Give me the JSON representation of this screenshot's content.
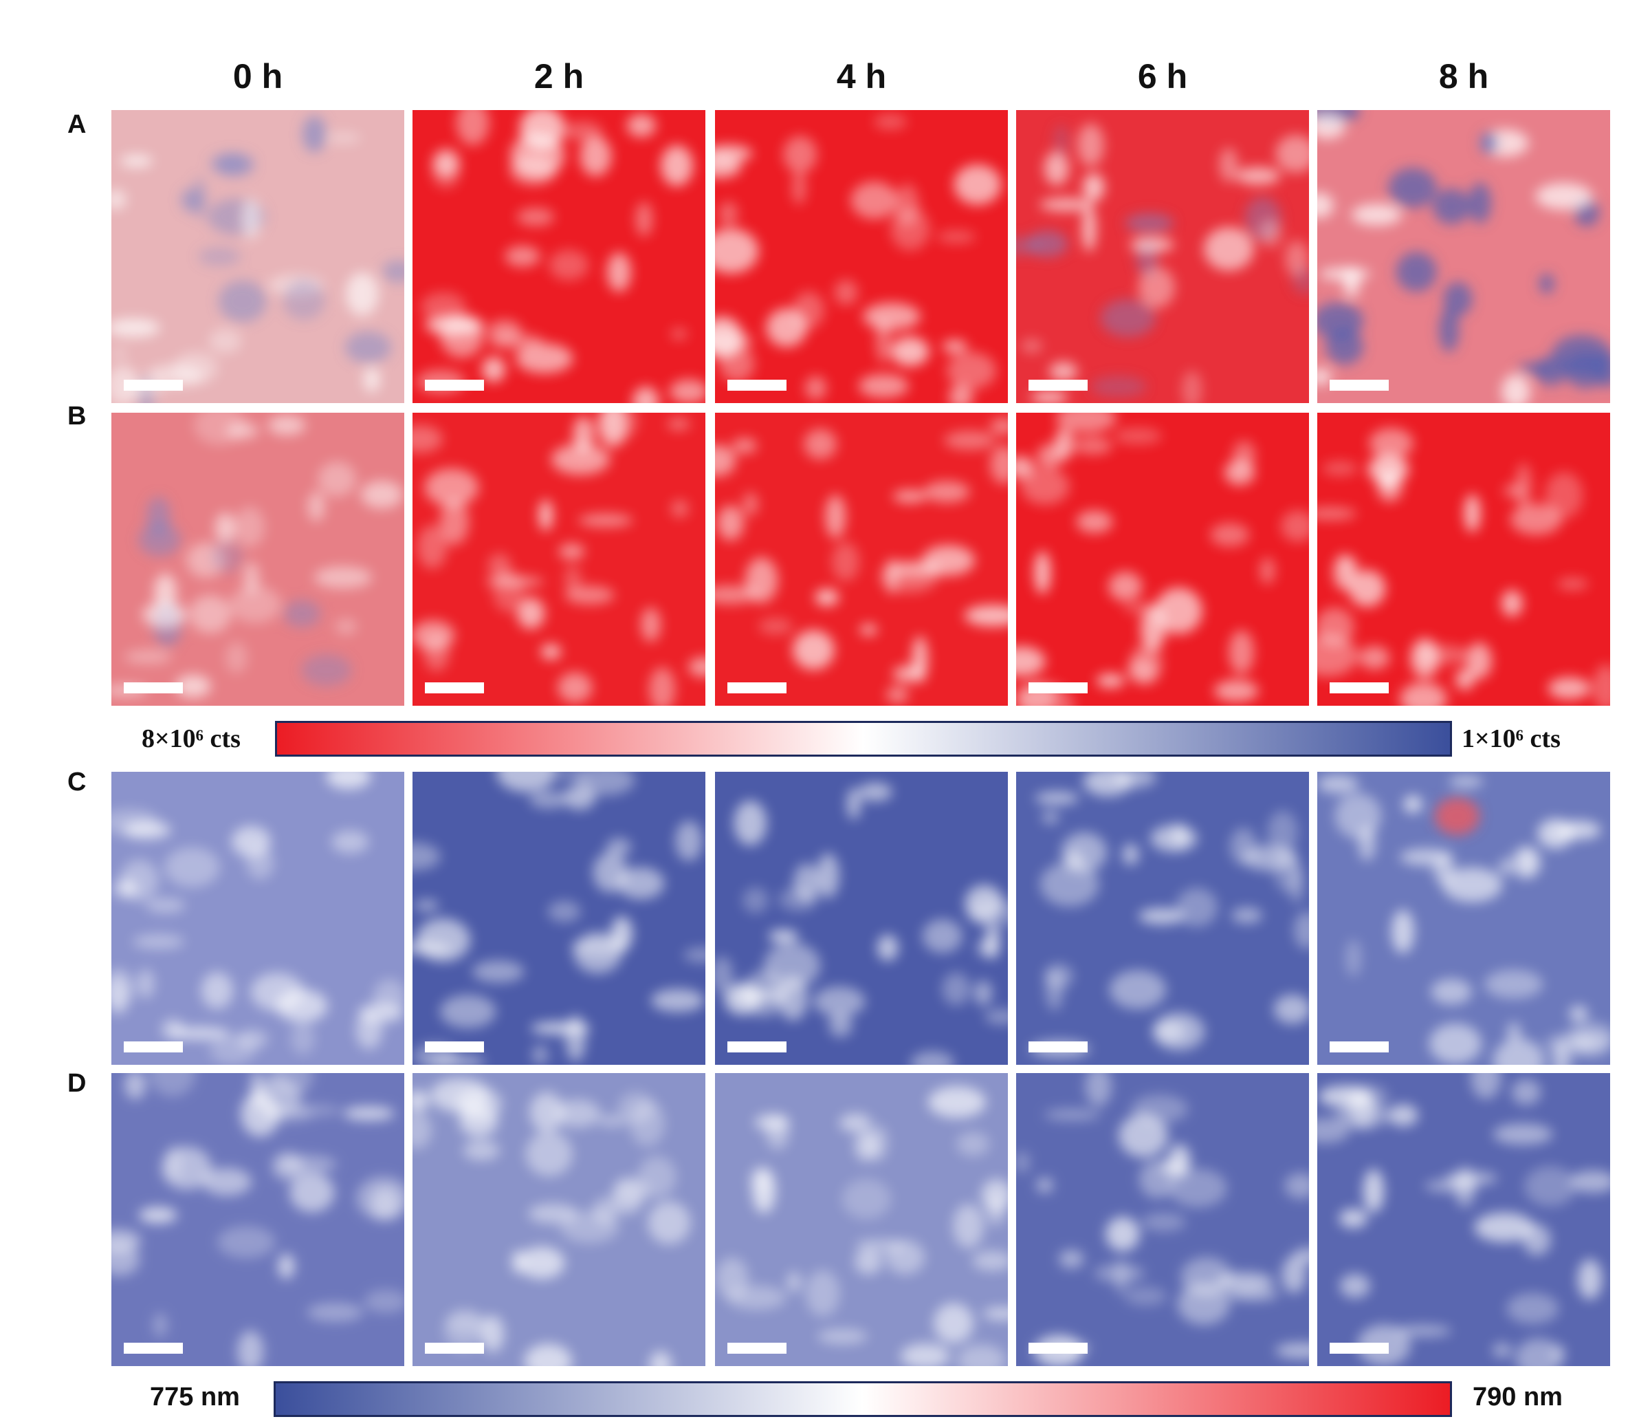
{
  "columns": [
    "0 h",
    "2 h",
    "4 h",
    "6 h",
    "8 h"
  ],
  "rows": [
    "A",
    "B",
    "C",
    "D"
  ],
  "colorbar_intensity": {
    "left_label": "8×10⁶ cts",
    "right_label": "1×10⁶ cts",
    "color_start": "#ec1c24",
    "color_mid": "#ffffff",
    "color_end": "#3b4f9c"
  },
  "colorbar_wavelength": {
    "left_label": "775 nm",
    "right_label": "790 nm",
    "color_start": "#3b4f9c",
    "color_mid": "#ffffff",
    "color_end": "#ec1c24"
  },
  "panel_colors": {
    "A": [
      "#e8b4b8",
      "#ec1c24",
      "#ec1c24",
      "#e8303a",
      "#e87f8a"
    ],
    "B": [
      "#e77f86",
      "#ec2128",
      "#ec2128",
      "#ec1c24",
      "#ec1c24"
    ],
    "C": [
      "#8b93cc",
      "#4c5ba8",
      "#4c5ba8",
      "#5362ad",
      "#6c79bc"
    ],
    "D": [
      "#6d77bb",
      "#8a93c9",
      "#8a93c9",
      "#5c69b1",
      "#5a67b0"
    ]
  }
}
